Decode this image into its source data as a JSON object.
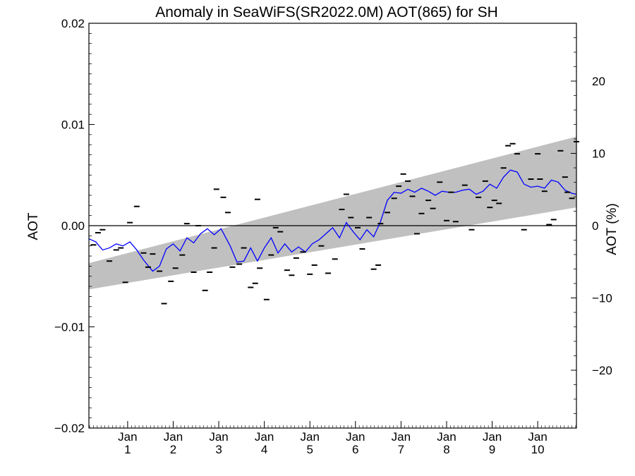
{
  "chart_data": {
    "type": "line",
    "title": "Anomaly in SeaWiFS(SR2022.0M) AOT(865) for SH",
    "ylabel": "AOT",
    "ylabel_right": "AOT (%)",
    "xlabel": "",
    "ylim": [
      -0.02,
      0.02
    ],
    "xlim": [
      0.15,
      10.85
    ],
    "ylim_right": [
      -28,
      28
    ],
    "y_ticks": [
      "0.02",
      "0.01",
      "0.00",
      "−0.01",
      "−0.02"
    ],
    "y_tick_values": [
      0.02,
      0.01,
      0.0,
      -0.01,
      -0.02
    ],
    "y_right_ticks": [
      "20",
      "10",
      "0",
      "−10",
      "−20"
    ],
    "y_right_tick_values": [
      20,
      10,
      0,
      -10,
      -20
    ],
    "x_ticks": [
      {
        "month": "Jan",
        "year": "1",
        "x": 1
      },
      {
        "month": "Jan",
        "year": "2",
        "x": 2
      },
      {
        "month": "Jan",
        "year": "3",
        "x": 3
      },
      {
        "month": "Jan",
        "year": "4",
        "x": 4
      },
      {
        "month": "Jan",
        "year": "5",
        "x": 5
      },
      {
        "month": "Jan",
        "year": "6",
        "x": 6
      },
      {
        "month": "Jan",
        "year": "7",
        "x": 7
      },
      {
        "month": "Jan",
        "year": "8",
        "x": 8
      },
      {
        "month": "Jan",
        "year": "9",
        "x": 9
      },
      {
        "month": "Jan",
        "year": "10",
        "x": 10
      }
    ],
    "zero_line": true,
    "band": {
      "color": "#c0c0c0",
      "x": [
        0.15,
        10.85
      ],
      "upper": [
        -0.0037,
        0.0088
      ],
      "lower": [
        -0.0063,
        0.0018
      ]
    },
    "series": [
      {
        "style": "line",
        "color": "#0000ff",
        "x": [
          0.15,
          0.3,
          0.45,
          0.6,
          0.75,
          0.9,
          1.05,
          1.2,
          1.35,
          1.55,
          1.7,
          1.85,
          2.0,
          2.15,
          2.3,
          2.45,
          2.6,
          2.75,
          2.9,
          3.05,
          3.25,
          3.4,
          3.55,
          3.7,
          3.85,
          4.0,
          4.15,
          4.3,
          4.45,
          4.6,
          4.75,
          4.9,
          5.05,
          5.2,
          5.35,
          5.5,
          5.65,
          5.8,
          5.95,
          6.1,
          6.25,
          6.4,
          6.55,
          6.7,
          6.85,
          7.0,
          7.15,
          7.3,
          7.45,
          7.6,
          7.75,
          7.9,
          8.05,
          8.2,
          8.35,
          8.5,
          8.65,
          8.8,
          8.95,
          9.1,
          9.25,
          9.4,
          9.55,
          9.7,
          9.85,
          10.0,
          10.15,
          10.3,
          10.45,
          10.6,
          10.75,
          10.85
        ],
        "y": [
          -0.0013,
          -0.0016,
          -0.0024,
          -0.0022,
          -0.0018,
          -0.002,
          -0.0016,
          -0.0024,
          -0.0034,
          -0.0045,
          -0.004,
          -0.0023,
          -0.0018,
          -0.0025,
          -0.0012,
          -0.0017,
          -0.0008,
          -0.0003,
          -0.0009,
          -0.0003,
          -0.002,
          -0.0036,
          -0.0035,
          -0.0022,
          -0.0035,
          -0.0022,
          -0.0012,
          -0.0027,
          -0.0018,
          -0.0026,
          -0.0021,
          -0.0026,
          -0.0018,
          -0.0014,
          -0.0008,
          -0.0002,
          -0.0012,
          0.0003,
          -0.0006,
          -0.0014,
          -0.0004,
          -0.0011,
          0.0004,
          0.0025,
          0.0033,
          0.0032,
          0.0036,
          0.0033,
          0.0037,
          0.0034,
          0.003,
          0.0034,
          0.0033,
          0.0033,
          0.0035,
          0.0036,
          0.0031,
          0.0034,
          0.0041,
          0.0037,
          0.0048,
          0.0055,
          0.0053,
          0.0041,
          0.0038,
          0.0039,
          0.0037,
          0.0045,
          0.0043,
          0.0035,
          0.0032,
          0.0031
        ]
      },
      {
        "style": "dash-markers",
        "color": "#000000",
        "x": [
          0.25,
          0.35,
          0.45,
          0.6,
          0.75,
          0.85,
          0.95,
          1.05,
          1.2,
          1.35,
          1.45,
          1.55,
          1.7,
          1.8,
          1.95,
          2.05,
          2.2,
          2.3,
          2.45,
          2.55,
          2.7,
          2.8,
          2.9,
          2.95,
          3.1,
          3.2,
          3.3,
          3.45,
          3.55,
          3.7,
          3.8,
          3.85,
          3.9,
          4.05,
          4.15,
          4.25,
          4.35,
          4.5,
          4.6,
          4.7,
          4.85,
          5.0,
          5.1,
          5.25,
          5.4,
          5.55,
          5.7,
          5.8,
          5.9,
          6.05,
          6.15,
          6.3,
          6.4,
          6.5,
          6.55,
          6.7,
          6.85,
          6.95,
          7.05,
          7.15,
          7.25,
          7.35,
          7.45,
          7.6,
          7.7,
          7.85,
          8.0,
          8.1,
          8.2,
          8.4,
          8.55,
          8.7,
          8.85,
          8.95,
          9.05,
          9.15,
          9.25,
          9.35,
          9.45,
          9.55,
          9.7,
          9.85,
          10.0,
          10.05,
          10.15,
          10.25,
          10.35,
          10.5,
          10.6,
          10.65,
          10.75,
          10.85
        ],
        "y": [
          -0.0019,
          -0.0007,
          -0.0004,
          -0.0035,
          -0.0024,
          -0.0022,
          -0.0056,
          0.0003,
          0.0019,
          -0.0027,
          -0.0041,
          -0.0028,
          -0.0045,
          -0.0077,
          -0.0055,
          -0.0042,
          -0.0029,
          0.0002,
          -0.0046,
          0.0,
          -0.0064,
          -0.0046,
          -0.0022,
          0.0036,
          0.0028,
          0.0013,
          -0.0041,
          -0.0038,
          -0.0022,
          -0.0061,
          -0.0057,
          0.0026,
          -0.0042,
          -0.0073,
          -0.0029,
          -0.0002,
          -0.0006,
          -0.0044,
          -0.0049,
          -0.0032,
          -0.0026,
          -0.0048,
          -0.0039,
          -0.002,
          -0.0047,
          -0.0033,
          0.0016,
          0.0031,
          0.0008,
          -0.0002,
          -0.0023,
          0.0008,
          -0.0043,
          -0.0039,
          0.0002,
          0.0013,
          0.0027,
          0.0039,
          0.0051,
          0.0044,
          0.0029,
          -0.0008,
          0.0012,
          0.0025,
          0.0017,
          0.0043,
          0.0005,
          0.0033,
          0.0004,
          0.004,
          -0.0004,
          0.0028,
          0.0044,
          0.0018,
          0.0025,
          0.0022,
          0.0057,
          0.0079,
          0.0081,
          0.0071,
          -0.0004,
          0.0046,
          0.0071,
          0.0046,
          0.0034,
          0.0001,
          0.0006,
          0.0074,
          0.0048,
          0.0033,
          0.0027,
          0.0083
        ]
      }
    ]
  }
}
